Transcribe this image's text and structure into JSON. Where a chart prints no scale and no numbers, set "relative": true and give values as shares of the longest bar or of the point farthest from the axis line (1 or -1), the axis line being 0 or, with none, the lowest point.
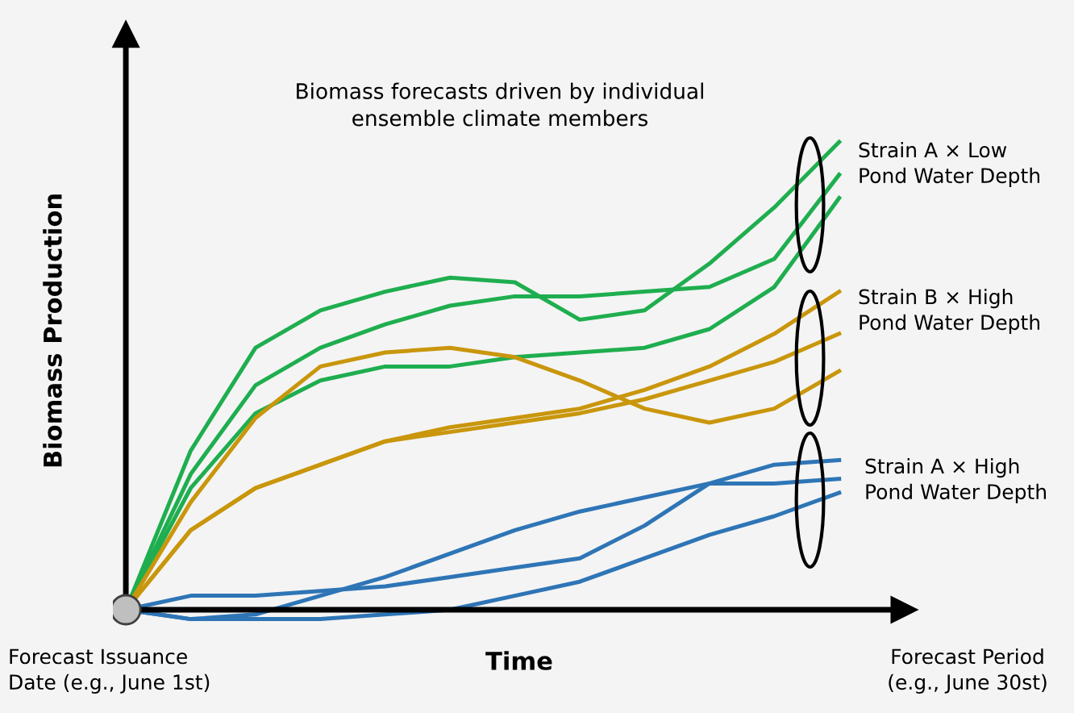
{
  "chart_data": {
    "type": "line",
    "relative": true,
    "title": "Biomass forecasts driven by individual\nensemble climate members",
    "xlabel": "Time",
    "ylabel": "Biomass Production",
    "categories": [
      null,
      null,
      null,
      null,
      null,
      null,
      null,
      null,
      null,
      null,
      null,
      null
    ],
    "series": [
      {
        "color": "#1fae4f",
        "values": [
          0,
          0.34,
          0.56,
          0.64,
          0.68,
          0.71,
          0.7,
          0.62,
          0.64,
          0.74,
          0.86,
          1
        ]
      },
      {
        "color": "#1fae4f",
        "values": [
          0,
          0.29,
          0.48,
          0.56,
          0.61,
          0.65,
          0.67,
          0.67,
          0.68,
          0.69,
          0.75,
          0.93
        ]
      },
      {
        "color": "#1fae4f",
        "values": [
          0,
          0.26,
          0.42,
          0.49,
          0.52,
          0.52,
          0.54,
          0.55,
          0.56,
          0.6,
          0.69,
          0.88
        ]
      },
      {
        "color": "#c9960c",
        "values": [
          0,
          0.23,
          0.41,
          0.52,
          0.55,
          0.56,
          0.54,
          0.49,
          0.43,
          0.4,
          0.43,
          0.51
        ]
      },
      {
        "color": "#c9960c",
        "values": [
          0,
          0.17,
          0.26,
          0.31,
          0.36,
          0.39,
          0.41,
          0.43,
          0.47,
          0.52,
          0.59,
          0.68
        ]
      },
      {
        "color": "#c9960c",
        "values": [
          0,
          0.17,
          0.26,
          0.31,
          0.36,
          0.38,
          0.4,
          0.42,
          0.45,
          0.49,
          0.53,
          0.59
        ]
      },
      {
        "color": "#2e75b6",
        "values": [
          0,
          0.03,
          0.03,
          0.04,
          0.05,
          0.07,
          0.09,
          0.11,
          0.18,
          0.27,
          0.31,
          0.32
        ]
      },
      {
        "color": "#2e75b6",
        "values": [
          0,
          -0.02,
          -0.01,
          0.03,
          0.07,
          0.12,
          0.17,
          0.21,
          0.24,
          0.27,
          0.27,
          0.28
        ]
      },
      {
        "color": "#2e75b6",
        "values": [
          0,
          -0.02,
          -0.02,
          -0.02,
          -0.01,
          0,
          0.03,
          0.06,
          0.11,
          0.16,
          0.2,
          0.25
        ]
      }
    ],
    "annotations": [
      "Strain A × Low\nPond Water Depth",
      "Strain B × High\nPond Water Depth",
      "Strain A × High\nPond Water Depth",
      "Forecast Issuance\nDate (e.g., June 1st)",
      "Forecast Period\n(e.g., June 30st)"
    ],
    "line_style": "solid",
    "marker": "none"
  }
}
